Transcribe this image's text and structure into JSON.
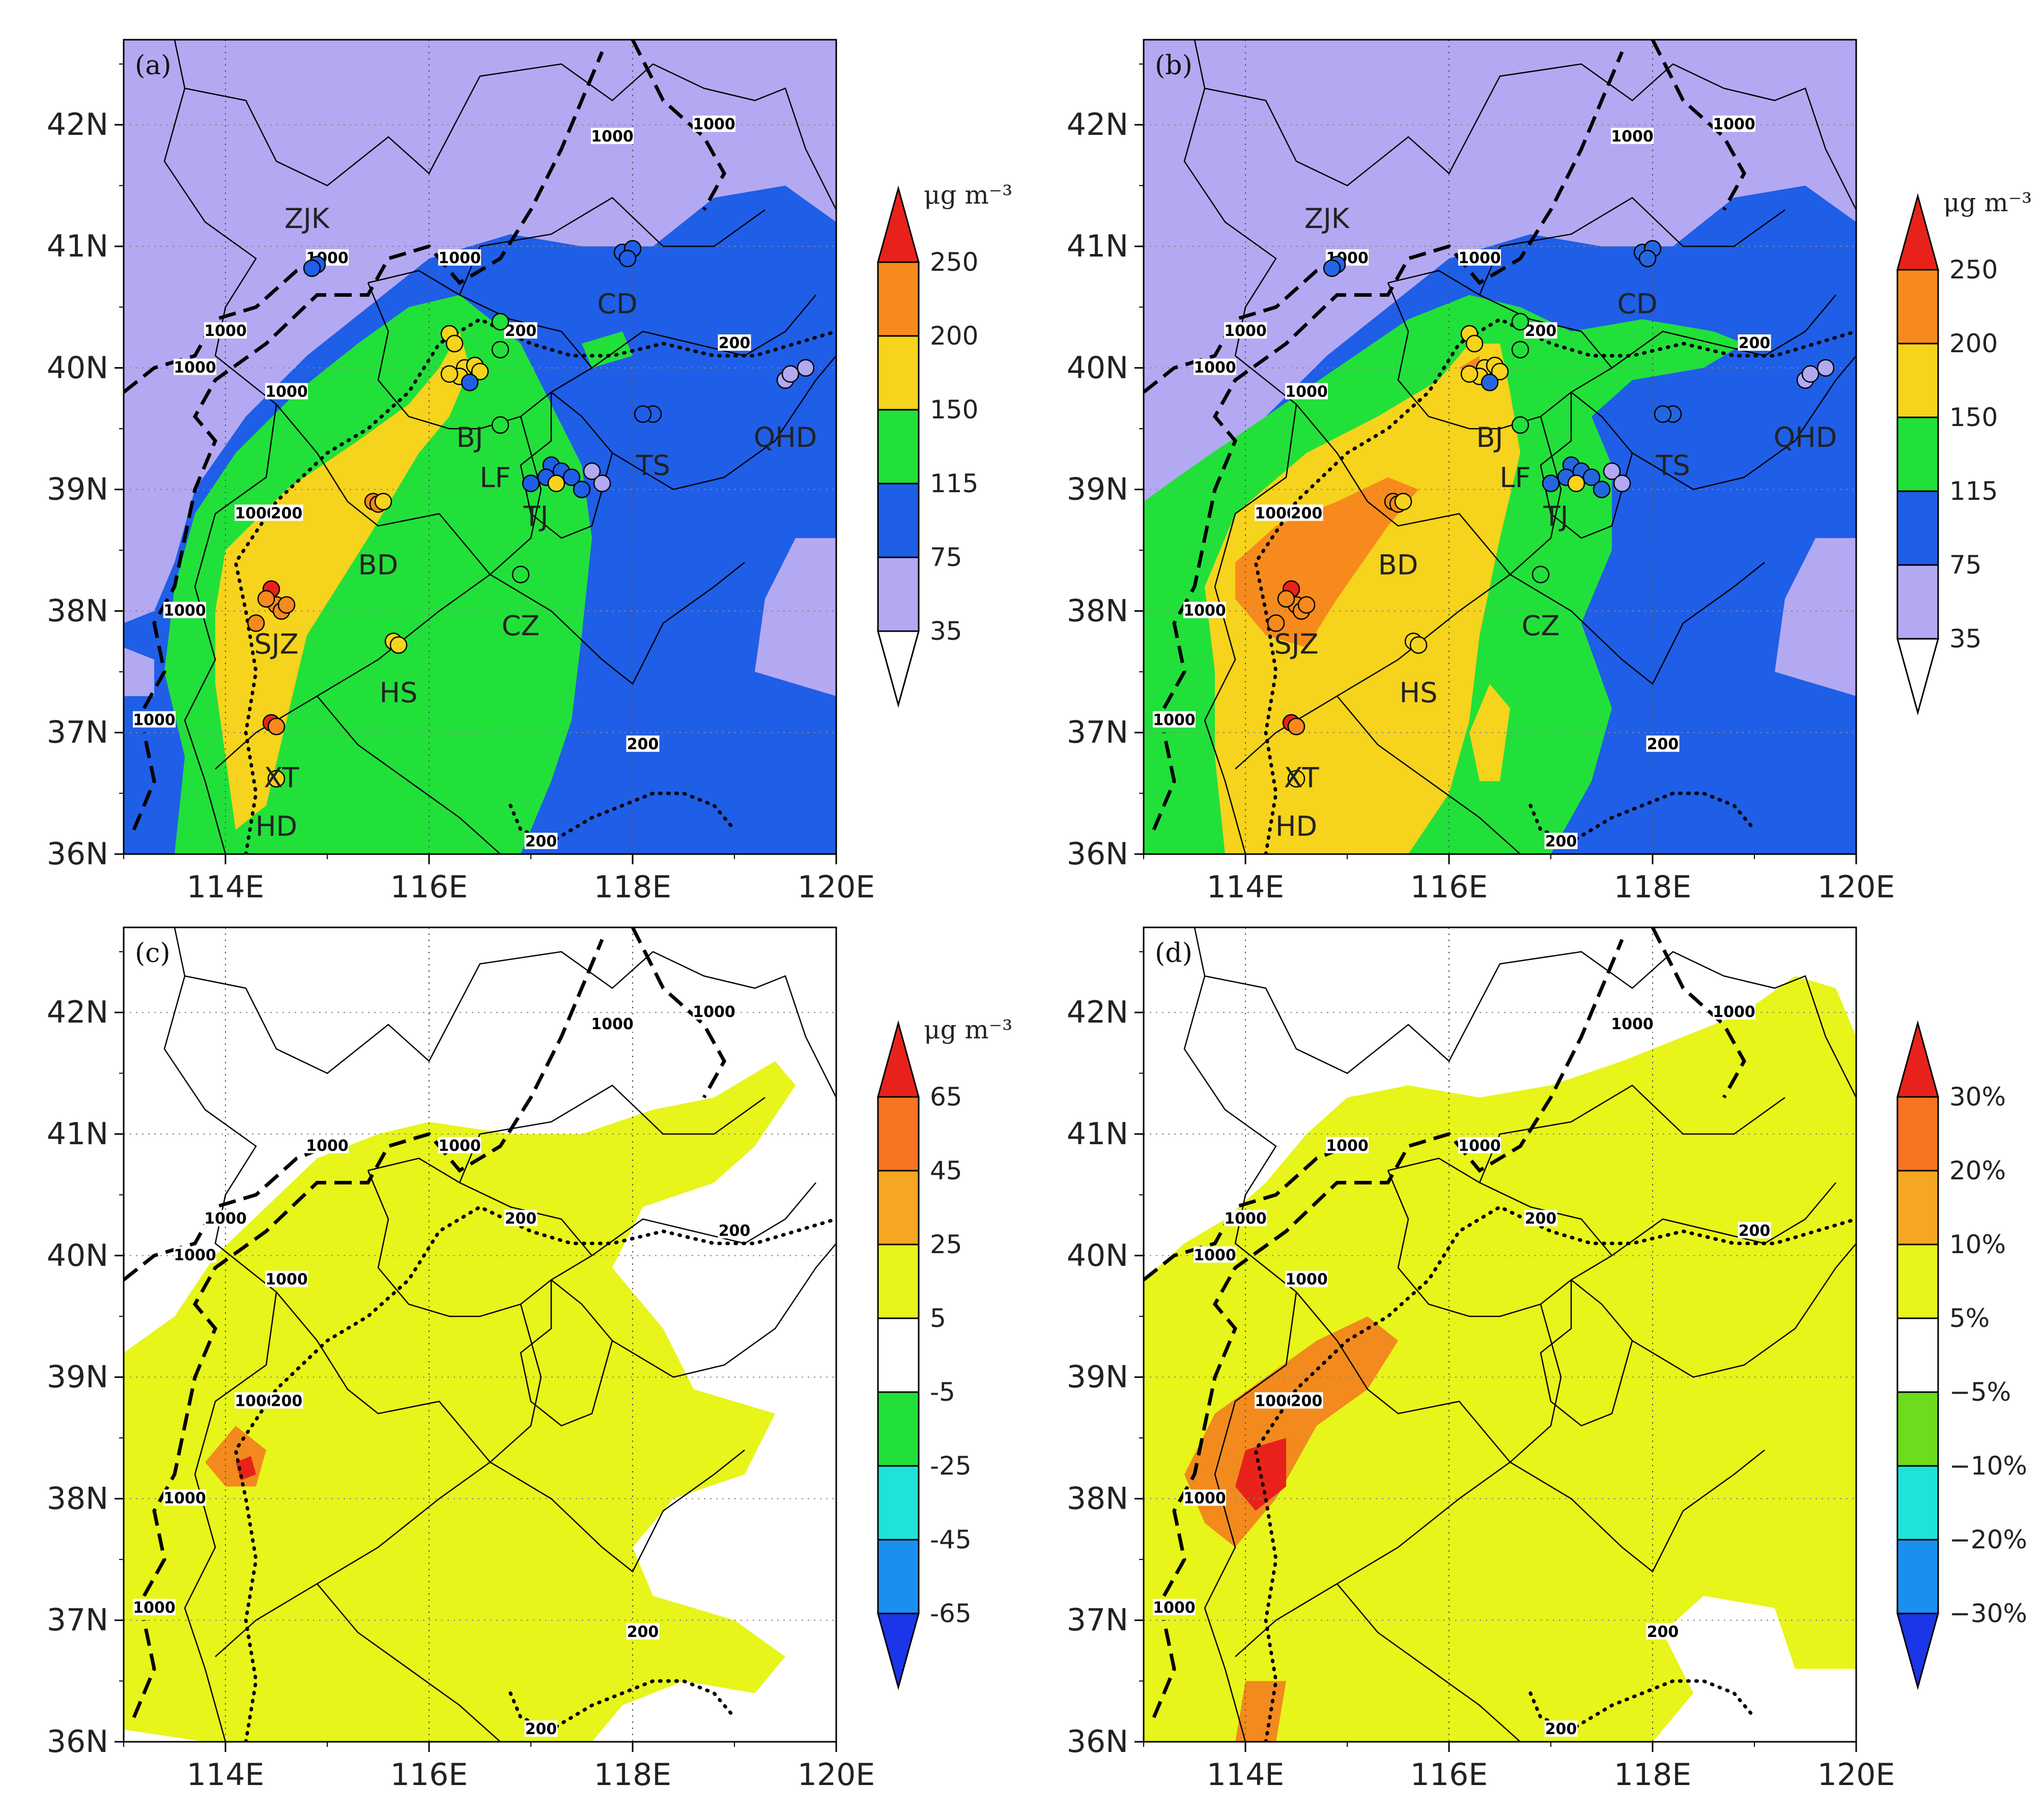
{
  "lat_labels": [
    "36N",
    "37N",
    "38N",
    "39N",
    "40N",
    "41N",
    "42N"
  ],
  "lon_labels": [
    "114E",
    "116E",
    "118E",
    "120E"
  ],
  "panels": [
    {
      "label": "(a)",
      "unit": "μg m⁻³",
      "colorbar": [
        "35",
        "75",
        "115",
        "150",
        "200",
        "250"
      ],
      "colors": [
        "#ffffff",
        "#b3a9f2",
        "#1f5ee6",
        "#22e03a",
        "#f6d31c",
        "#f78a1c",
        "#e8221a"
      ]
    },
    {
      "label": "(b)",
      "unit": "μg m⁻³",
      "colorbar": [
        "35",
        "75",
        "115",
        "150",
        "200",
        "250"
      ],
      "colors": [
        "#ffffff",
        "#b3a9f2",
        "#1f5ee6",
        "#22e03a",
        "#f6d31c",
        "#f78a1c",
        "#e8221a"
      ]
    },
    {
      "label": "(c)",
      "unit": "μg m⁻³",
      "colorbar": [
        "-65",
        "-45",
        "-25",
        "-5",
        "5",
        "25",
        "45",
        "65"
      ],
      "colors": [
        "#1b35e8",
        "#1b8ff0",
        "#1fe3d8",
        "#22e03a",
        "#ffffff",
        "#e7f51a",
        "#f6a623",
        "#f77420",
        "#e8221a"
      ]
    },
    {
      "label": "(d)",
      "unit": "",
      "colorbar": [
        "−30%",
        "−20%",
        "−10%",
        "−5%",
        "5%",
        "10%",
        "20%",
        "30%"
      ],
      "colors": [
        "#1b35e8",
        "#1b8ff0",
        "#1fe3d8",
        "#6cdc1c",
        "#ffffff",
        "#e7f51a",
        "#f6a623",
        "#f77420",
        "#e8221a"
      ]
    }
  ],
  "cities": [
    {
      "name": "ZJK",
      "lat": 40.8,
      "lon": 114.8
    },
    {
      "name": "CD",
      "lat": 40.7,
      "lon": 117.9
    },
    {
      "name": "BJ",
      "lat": 39.7,
      "lon": 116.3
    },
    {
      "name": "QHD",
      "lat": 39.7,
      "lon": 119.5
    },
    {
      "name": "TS",
      "lat": 39.4,
      "lon": 118.2
    },
    {
      "name": "LF",
      "lat": 39.3,
      "lon": 116.7
    },
    {
      "name": "TJ",
      "lat": 38.9,
      "lon": 117.2
    },
    {
      "name": "BD",
      "lat": 38.6,
      "lon": 115.5
    },
    {
      "name": "CZ",
      "lat": 38.0,
      "lon": 116.9
    },
    {
      "name": "SJZ",
      "lat": 37.8,
      "lon": 114.5
    },
    {
      "name": "HS",
      "lat": 37.5,
      "lon": 115.7
    },
    {
      "name": "XT",
      "lat": 36.8,
      "lon": 114.5
    },
    {
      "name": "HD",
      "lat": 36.4,
      "lon": 114.5
    }
  ],
  "contour_labels": [
    "1000",
    "1000",
    "1000",
    "1000",
    "1000",
    "1000",
    "1000",
    "1000",
    "200",
    "200",
    "200",
    "200"
  ],
  "colors": {
    "plateau": "#b3a9f2",
    "blue": "#1f5ee6",
    "green": "#22e03a",
    "yellow": "#f6d31c",
    "orange": "#f78a1c",
    "red": "#e8221a",
    "lime": "#e7f51a",
    "dorange": "#f6a623"
  }
}
